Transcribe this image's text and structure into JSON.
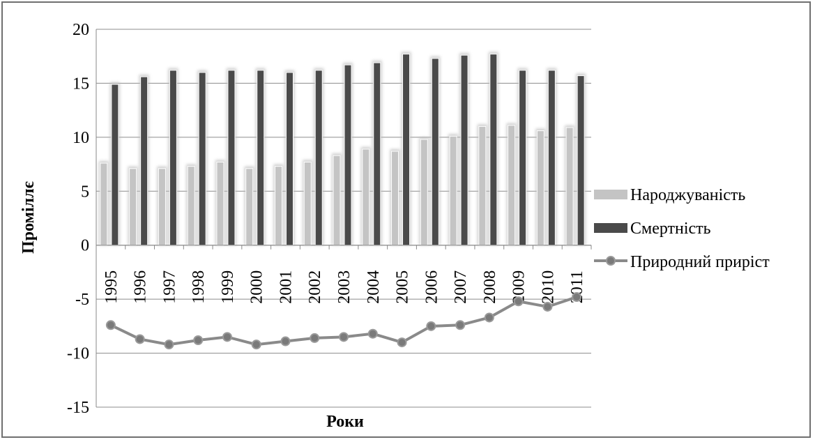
{
  "chart_data": {
    "type": "bar",
    "categories": [
      "1995",
      "1996",
      "1997",
      "1998",
      "1999",
      "2000",
      "2001",
      "2002",
      "2003",
      "2004",
      "2005",
      "2006",
      "2007",
      "2008",
      "2009",
      "2010",
      "2011"
    ],
    "series": [
      {
        "name": "Народжуваність",
        "kind": "bar",
        "color": "#c4c4c4",
        "values": [
          7.6,
          7.1,
          7.1,
          7.3,
          7.7,
          7.1,
          7.3,
          7.7,
          8.3,
          8.9,
          8.7,
          9.8,
          10.1,
          11.0,
          11.1,
          10.6,
          10.9
        ]
      },
      {
        "name": "Смертність",
        "kind": "bar",
        "color": "#4a4a4a",
        "values": [
          14.9,
          15.6,
          16.2,
          16.0,
          16.2,
          16.2,
          16.0,
          16.2,
          16.7,
          16.9,
          17.7,
          17.3,
          17.6,
          17.7,
          16.2,
          16.2,
          15.7
        ]
      },
      {
        "name": "Природний приріст",
        "kind": "line",
        "color": "#8a8a8a",
        "values": [
          -7.4,
          -8.7,
          -9.2,
          -8.8,
          -8.5,
          -9.2,
          -8.9,
          -8.6,
          -8.5,
          -8.2,
          -9.0,
          -7.5,
          -7.4,
          -6.7,
          -5.2,
          -5.7,
          -4.8
        ]
      }
    ],
    "yticks": [
      "20",
      "15",
      "10",
      "5",
      "0",
      "-5",
      "-10",
      "-15"
    ],
    "ylim": [
      -15,
      20
    ],
    "xlabel": "Роки",
    "ylabel": "Проміллє",
    "title": "",
    "grid": true,
    "legend_position": "right"
  }
}
